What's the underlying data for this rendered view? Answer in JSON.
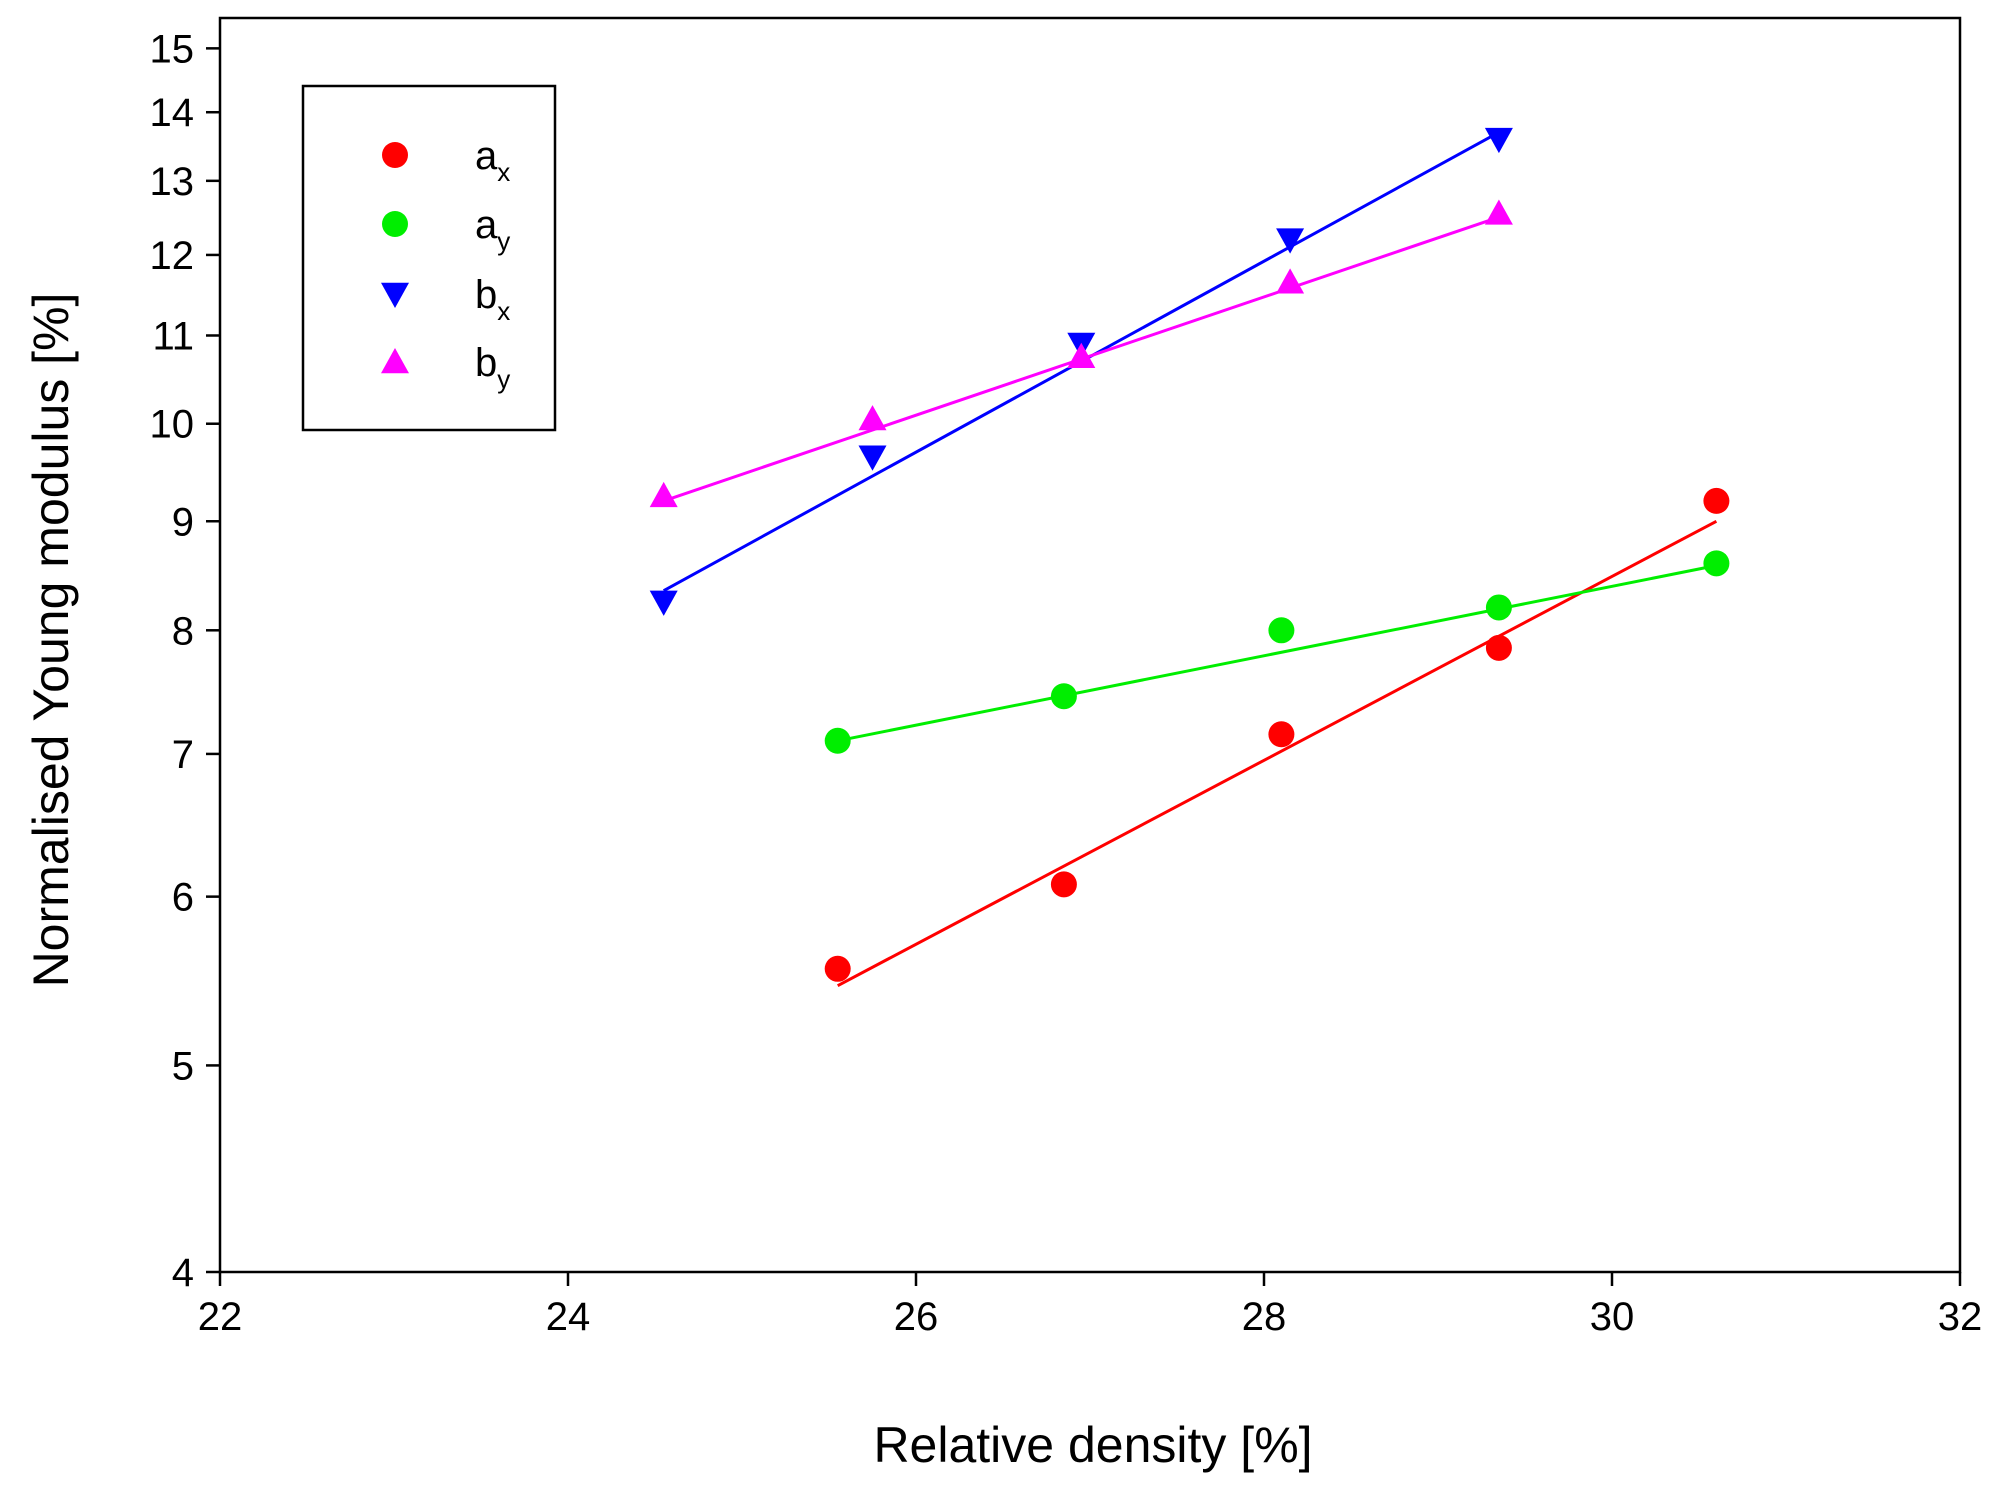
{
  "chart_data": {
    "type": "scatter",
    "title": "",
    "xlabel": "Relative density [%]",
    "ylabel": "Normalised Young modulus [%]",
    "xlim": [
      22,
      32
    ],
    "ylim": [
      4,
      15.5
    ],
    "yscale": "log",
    "xticks": [
      22,
      24,
      26,
      28,
      30,
      32
    ],
    "yticks": [
      4,
      5,
      6,
      7,
      8,
      9,
      10,
      11,
      12,
      13,
      14,
      15
    ],
    "xtick_labels": [
      "22",
      "24",
      "26",
      "28",
      "30",
      "32"
    ],
    "ytick_labels": [
      "4",
      "5",
      "6",
      "7",
      "8",
      "9",
      "10",
      "11",
      "12",
      "13",
      "14",
      "15"
    ],
    "grid": false,
    "legend_position": "top-left",
    "series": [
      {
        "name": "ax",
        "label_main": "a",
        "label_sub": "x",
        "marker": "circle",
        "color": "#ff0000",
        "x": [
          25.55,
          26.85,
          28.1,
          29.35,
          30.6
        ],
        "y": [
          5.55,
          6.08,
          7.15,
          7.85,
          9.2
        ],
        "fit": {
          "x": [
            25.55,
            30.6
          ],
          "y": [
            5.45,
            9.0
          ]
        }
      },
      {
        "name": "ay",
        "label_main": "a",
        "label_sub": "y",
        "marker": "circle",
        "color": "#00ee00",
        "x": [
          25.55,
          26.85,
          28.1,
          29.35,
          30.6
        ],
        "y": [
          7.1,
          7.45,
          8.0,
          8.2,
          8.6
        ],
        "fit": {
          "x": [
            25.55,
            30.6
          ],
          "y": [
            7.1,
            8.58
          ]
        }
      },
      {
        "name": "bx",
        "label_main": "b",
        "label_sub": "x",
        "marker": "triangle-down",
        "color": "#0000ff",
        "x": [
          24.55,
          25.75,
          26.95,
          28.15,
          29.35
        ],
        "y": [
          8.25,
          9.65,
          10.9,
          12.2,
          13.6
        ],
        "fit": {
          "x": [
            24.55,
            29.35
          ],
          "y": [
            8.35,
            13.7
          ]
        }
      },
      {
        "name": "by",
        "label_main": "b",
        "label_sub": "y",
        "marker": "triangle-up",
        "color": "#ff00ff",
        "x": [
          24.55,
          25.75,
          26.95,
          28.15,
          29.35
        ],
        "y": [
          9.25,
          10.05,
          10.75,
          11.65,
          12.55
        ],
        "fit": {
          "x": [
            24.55,
            29.35
          ],
          "y": [
            9.2,
            12.5
          ]
        }
      }
    ]
  }
}
